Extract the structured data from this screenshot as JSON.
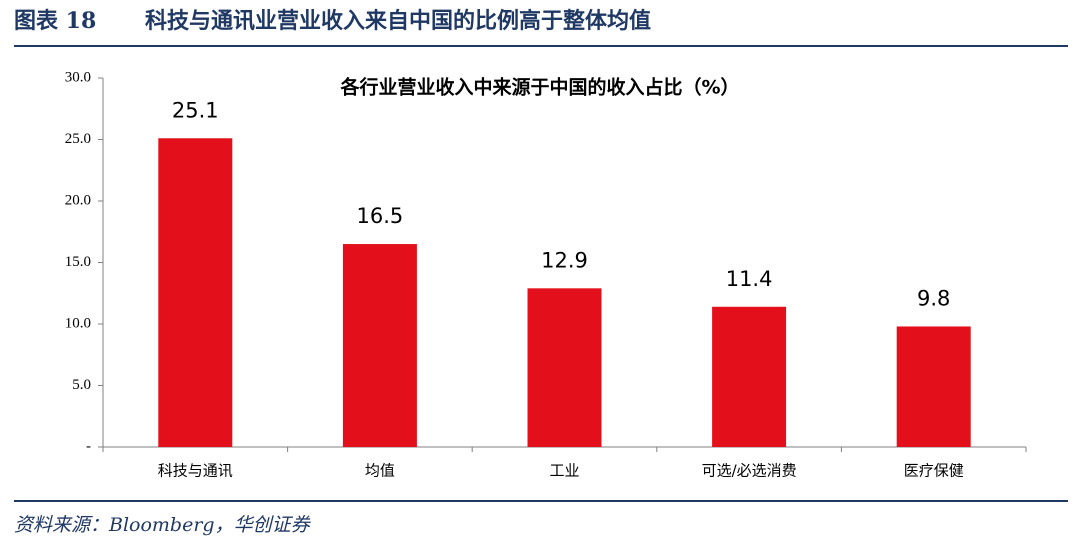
{
  "header": {
    "label": "图表 18",
    "title": "科技与通讯业营业收入来自中国的比例高于整体均值"
  },
  "chart_data": {
    "type": "bar",
    "title": "各行业营业收入中来源于中国的收入占比（%）",
    "categories": [
      "科技与通讯",
      "均值",
      "工业",
      "可选/必选消费",
      "医疗保健"
    ],
    "values": [
      25.1,
      16.5,
      12.9,
      11.4,
      9.8
    ],
    "color": "#e3101b",
    "ylim": [
      0,
      30
    ],
    "yticks": [
      {
        "value": 0,
        "label": "-"
      },
      {
        "value": 5,
        "label": "5.0"
      },
      {
        "value": 10,
        "label": "10.0"
      },
      {
        "value": 15,
        "label": "15.0"
      },
      {
        "value": 20,
        "label": "20.0"
      },
      {
        "value": 25,
        "label": "25.0"
      },
      {
        "value": 30,
        "label": "30.0"
      }
    ],
    "grid": false
  },
  "footer": {
    "source": "资料来源：Bloomberg，华创证券"
  }
}
